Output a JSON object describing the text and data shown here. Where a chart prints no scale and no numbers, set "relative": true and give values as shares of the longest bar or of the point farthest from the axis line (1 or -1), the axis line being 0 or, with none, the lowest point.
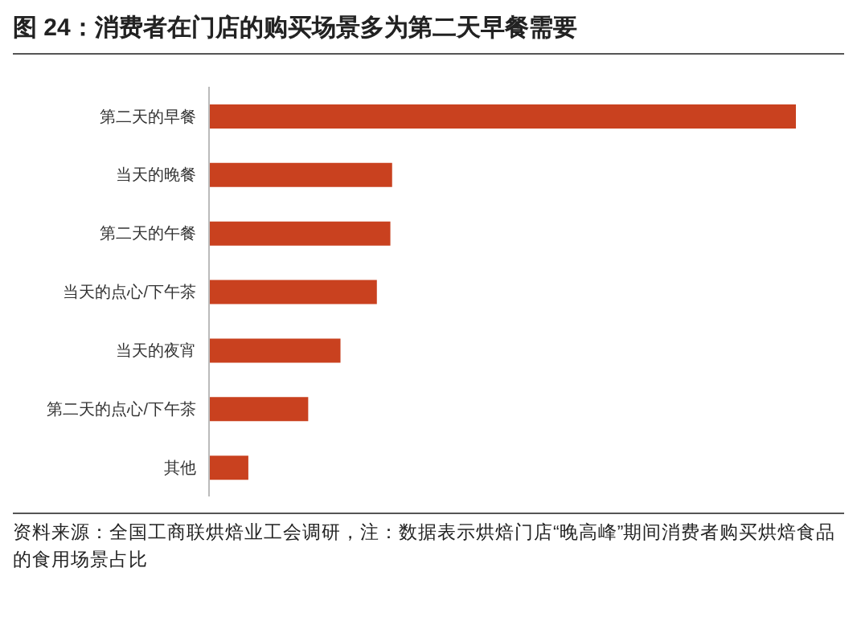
{
  "chart_data": {
    "type": "bar",
    "orientation": "horizontal",
    "relative": true,
    "title": "图 24：消费者在门店的购买场景多为第二天早餐需要",
    "categories": [
      "第二天的早餐",
      "当天的晚餐",
      "第二天的午餐",
      "当天的点心/下午茶",
      "当天的夜宵",
      "第二天的点心/下午茶",
      "其他"
    ],
    "values": [
      1,
      0.312,
      0.309,
      0.286,
      0.224,
      0.169,
      0.067
    ],
    "color": "#c9411f",
    "annotations": [
      "资料来源：全国工商联烘焙业工会调研，注：数据表示烘焙门店“晚高峰”期间消费者购买烘焙食品的食用场景占比"
    ]
  }
}
